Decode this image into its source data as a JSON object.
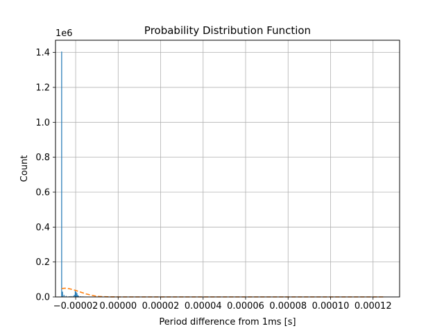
{
  "chart_data": {
    "type": "bar",
    "title": "Probability Distribution Function",
    "xlabel": "Period difference from 1ms [s]",
    "ylabel": "Count",
    "y_offset_label": "1e6",
    "xlim": [
      -2.95e-05,
      0.0001325
    ],
    "ylim": [
      0,
      1.47
    ],
    "grid": true,
    "x_ticks": [
      {
        "value": -2e-05,
        "label": "−0.00002"
      },
      {
        "value": 0.0,
        "label": "0.00000"
      },
      {
        "value": 2e-05,
        "label": "0.00002"
      },
      {
        "value": 4e-05,
        "label": "0.00004"
      },
      {
        "value": 6e-05,
        "label": "0.00006"
      },
      {
        "value": 8e-05,
        "label": "0.00008"
      },
      {
        "value": 0.0001,
        "label": "0.00010"
      },
      {
        "value": 0.00012,
        "label": "0.00012"
      }
    ],
    "y_ticks": [
      {
        "value": 0.0,
        "label": "0.0"
      },
      {
        "value": 0.2,
        "label": "0.2"
      },
      {
        "value": 0.4,
        "label": "0.4"
      },
      {
        "value": 0.6,
        "label": "0.6"
      },
      {
        "value": 0.8,
        "label": "0.8"
      },
      {
        "value": 1.0,
        "label": "1.0"
      },
      {
        "value": 1.2,
        "label": "1.2"
      },
      {
        "value": 1.4,
        "label": "1.4"
      }
    ],
    "bar_color": "#1f77b4",
    "fit_color": "#ff7f0e",
    "histogram": [
      {
        "x": -2.66e-05,
        "width": 4e-07,
        "value": 1.405
      },
      {
        "x": -2.62e-05,
        "width": 4e-07,
        "value": 0.03
      },
      {
        "x": -2.55e-05,
        "width": 4e-07,
        "value": 0.012
      },
      {
        "x": -2.45e-05,
        "width": 4e-07,
        "value": 0.006
      },
      {
        "x": -2.3e-05,
        "width": 4e-07,
        "value": 0.004
      },
      {
        "x": -2.22e-05,
        "width": 4e-07,
        "value": 0.005
      },
      {
        "x": -2.12e-05,
        "width": 4e-07,
        "value": 0.006
      },
      {
        "x": -2.06e-05,
        "width": 4e-07,
        "value": 0.012
      },
      {
        "x": -2.02e-05,
        "width": 4e-07,
        "value": 0.035
      },
      {
        "x": -1.98e-05,
        "width": 4e-07,
        "value": 0.028
      },
      {
        "x": -1.94e-05,
        "width": 4e-07,
        "value": 0.022
      },
      {
        "x": -1.9e-05,
        "width": 4e-07,
        "value": 0.01
      },
      {
        "x": -1.86e-05,
        "width": 4e-07,
        "value": 0.006
      },
      {
        "x": -1.76e-05,
        "width": 4e-07,
        "value": 0.004
      },
      {
        "x": -1.66e-05,
        "width": 4e-07,
        "value": 0.003
      },
      {
        "x": -1.56e-05,
        "width": 4e-07,
        "value": 0.002
      },
      {
        "x": -1.46e-05,
        "width": 4e-07,
        "value": 0.002
      }
    ],
    "fit_curve": {
      "style": "dashed",
      "x": [
        -2.66e-05,
        -2.5e-05,
        -2.3e-05,
        -2.1e-05,
        -1.9e-05,
        -1.7e-05,
        -1.5e-05,
        -1.3e-05,
        -1.1e-05,
        -9e-06,
        -7e-06,
        -5e-06,
        -3e-06,
        -1e-06,
        0.0,
        1e-05,
        4e-05,
        8e-05,
        0.000125
      ],
      "y": [
        0.048,
        0.05,
        0.047,
        0.041,
        0.033,
        0.025,
        0.017,
        0.011,
        0.006,
        0.003,
        0.0015,
        0.0007,
        0.0003,
        0.0001,
        5e-05,
        0.0,
        0.0,
        0.0,
        0.0
      ]
    }
  }
}
